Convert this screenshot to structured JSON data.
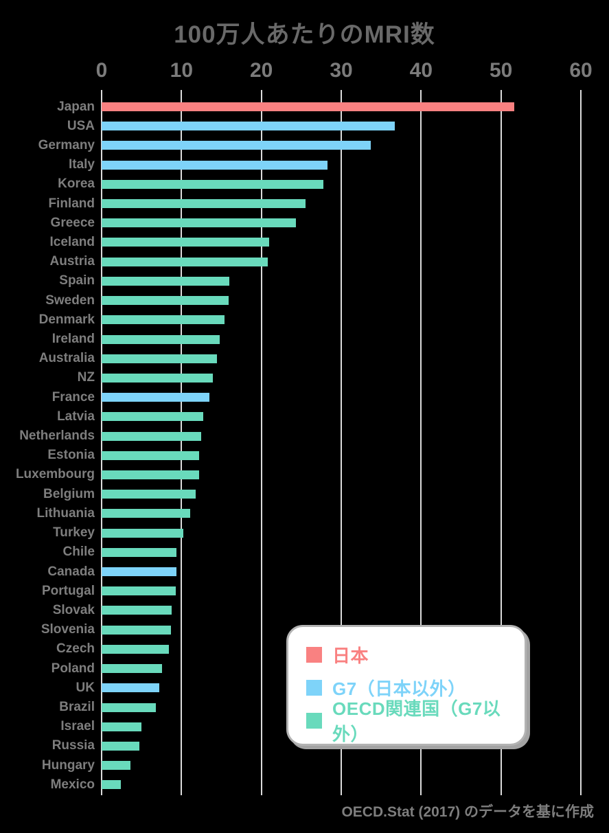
{
  "page": {
    "title": "100万人あたりのMRI数",
    "footer": "OECD.Stat (2017) のデータを基に作成"
  },
  "legend": {
    "items": [
      {
        "key": "japan",
        "label": "日本",
        "color": "#f98181"
      },
      {
        "key": "g7",
        "label": "G7（日本以外）",
        "color": "#7ed3f9"
      },
      {
        "key": "oecd",
        "label": "OECD関連国（G7以外）",
        "color": "#69dabc"
      }
    ]
  },
  "chart_data": {
    "type": "bar",
    "orientation": "horizontal",
    "title": "100万人あたりのMRI数",
    "xlabel": "",
    "ylabel": "",
    "xlim": [
      0,
      60
    ],
    "x_ticks": [
      0,
      10,
      20,
      30,
      40,
      50,
      60
    ],
    "grid": true,
    "legend_position": "lower-right",
    "unit": "MRI units per 1 million population",
    "source": "OECD.Stat (2017) のデータを基に作成",
    "categories": [
      "Japan",
      "USA",
      "Germany",
      "Italy",
      "Korea",
      "Finland",
      "Greece",
      "Iceland",
      "Austria",
      "Spain",
      "Sweden",
      "Denmark",
      "Ireland",
      "Australia",
      "NZ",
      "France",
      "Latvia",
      "Netherlands",
      "Estonia",
      "Luxembourg",
      "Belgium",
      "Lithuania",
      "Turkey",
      "Chile",
      "Canada",
      "Portugal",
      "Slovak",
      "Slovenia",
      "Czech",
      "Poland",
      "UK",
      "Brazil",
      "Israel",
      "Russia",
      "Hungary",
      "Mexico"
    ],
    "values": [
      51.7,
      36.7,
      33.7,
      28.3,
      27.8,
      25.5,
      24.3,
      21.0,
      20.8,
      16.0,
      15.9,
      15.4,
      14.8,
      14.4,
      13.9,
      13.5,
      12.7,
      12.5,
      12.2,
      12.2,
      11.8,
      11.1,
      10.2,
      9.4,
      9.4,
      9.3,
      8.8,
      8.7,
      8.4,
      7.6,
      7.2,
      6.8,
      5.0,
      4.7,
      3.6,
      2.4
    ],
    "groups": [
      "japan",
      "g7",
      "g7",
      "g7",
      "oecd",
      "oecd",
      "oecd",
      "oecd",
      "oecd",
      "oecd",
      "oecd",
      "oecd",
      "oecd",
      "oecd",
      "oecd",
      "g7",
      "oecd",
      "oecd",
      "oecd",
      "oecd",
      "oecd",
      "oecd",
      "oecd",
      "oecd",
      "g7",
      "oecd",
      "oecd",
      "oecd",
      "oecd",
      "oecd",
      "g7",
      "oecd",
      "oecd",
      "oecd",
      "oecd",
      "oecd"
    ],
    "colors": {
      "japan": "#f98181",
      "g7": "#7ed3f9",
      "oecd": "#69dabc",
      "gridline": "#dcdcdc",
      "text": "#7e7e7e"
    }
  }
}
